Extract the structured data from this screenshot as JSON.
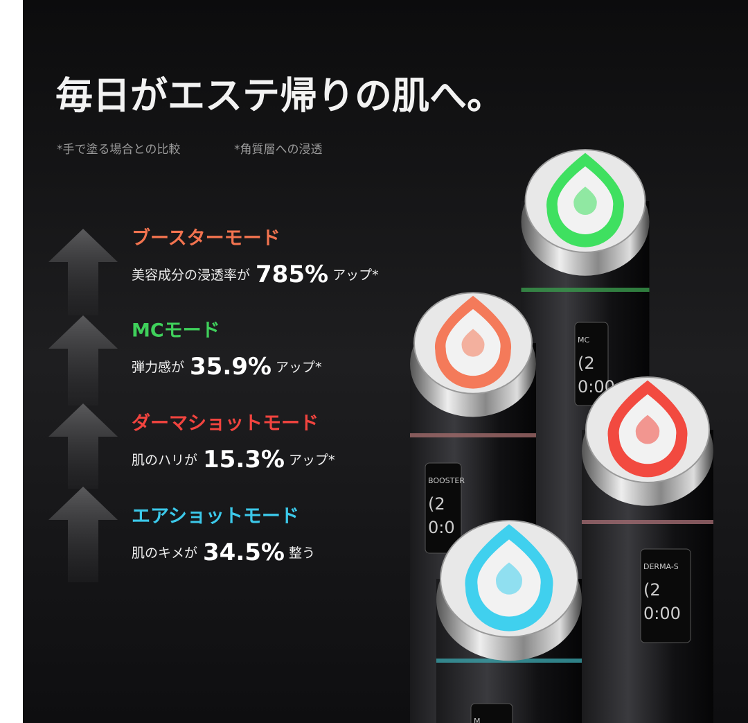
{
  "title": "毎日がエステ帰りの肌へ。",
  "notes": [
    "*手で塗る場合との比較",
    "*角質層への浸透"
  ],
  "modes": [
    {
      "name": "ブースターモード",
      "color": "#f2734f",
      "desc": "美容成分の浸透率が",
      "value": "785%",
      "suffix": "アップ*"
    },
    {
      "name": "MCモード",
      "color": "#3fd05b",
      "desc": "弾力感が",
      "value": "35.9%",
      "suffix": "アップ*"
    },
    {
      "name": "ダーマショットモード",
      "color": "#f2443f",
      "desc": "肌のハリが",
      "value": "15.3%",
      "suffix": "アップ*"
    },
    {
      "name": "エアショットモード",
      "color": "#3cc9ea",
      "desc": "肌のキメが",
      "value": "34.5%",
      "suffix": "整う"
    }
  ],
  "devices": [
    {
      "light": "#3fe060",
      "ring": "#3a9a4c",
      "screen": [
        "MC",
        "(2",
        "0:00"
      ]
    },
    {
      "light": "#f47a5a",
      "ring": "#a06a6a",
      "screen": [
        "BOOSTER",
        "(2",
        "0:0"
      ]
    },
    {
      "light": "#f24a40",
      "ring": "#a06a70",
      "screen": [
        "DERMA-S",
        "(2",
        "0:00"
      ]
    },
    {
      "light": "#40d0ee",
      "ring": "#3aa0a8",
      "screen": [
        "M"
      ]
    }
  ]
}
